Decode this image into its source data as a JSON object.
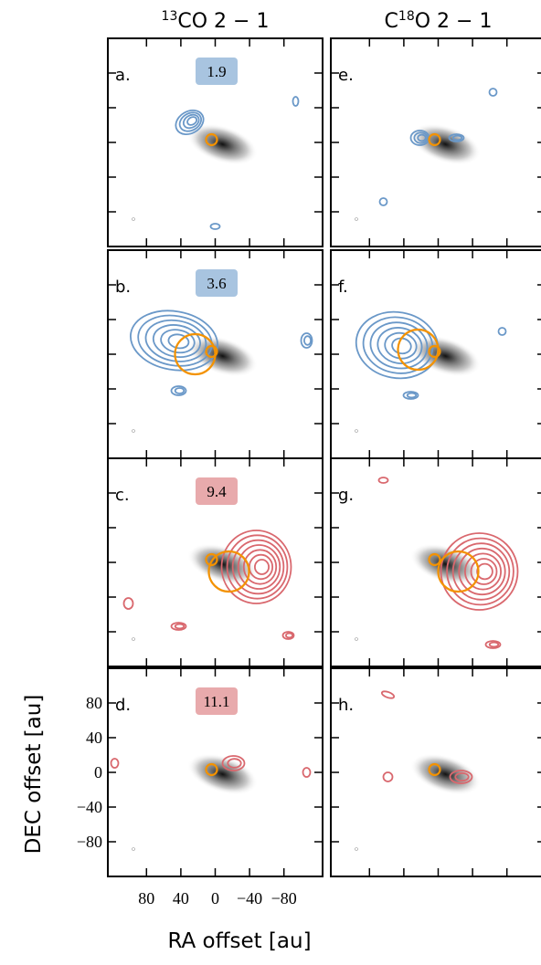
{
  "chart_data": {
    "type": "channel-map",
    "columns": [
      {
        "sup": "13",
        "post": "CO 2 − 1"
      },
      {
        "pre": "C",
        "sup": "18",
        "post": "O 2 − 1"
      }
    ],
    "panels": [
      {
        "letter": "a.",
        "column": 0,
        "row": 0,
        "velocity": 1.9,
        "color": "#6a98c8",
        "box_color": "#a8c4e0"
      },
      {
        "letter": "b.",
        "column": 0,
        "row": 1,
        "velocity": 3.6,
        "color": "#6a98c8",
        "box_color": "#a8c4e0"
      },
      {
        "letter": "c.",
        "column": 0,
        "row": 2,
        "velocity": 9.4,
        "color": "#d9686e",
        "box_color": "#e8aaac"
      },
      {
        "letter": "d.",
        "column": 0,
        "row": 3,
        "velocity": 11.1,
        "color": "#d9686e",
        "box_color": "#e8aaac"
      },
      {
        "letter": "e.",
        "column": 1,
        "row": 0,
        "color": "#6a98c8"
      },
      {
        "letter": "f.",
        "column": 1,
        "row": 1,
        "color": "#6a98c8"
      },
      {
        "letter": "g.",
        "column": 1,
        "row": 2,
        "color": "#d9686e"
      },
      {
        "letter": "h.",
        "column": 1,
        "row": 3,
        "color": "#d9686e"
      }
    ],
    "xlabel": "RA offset [au]",
    "ylabel": "DEC offset [au]",
    "xlim": [
      125,
      -125
    ],
    "ylim": [
      -120,
      120
    ],
    "xticks": [
      80,
      40,
      0,
      {
        "value": -40,
        "label": "−40"
      },
      {
        "value": -80,
        "label": "−80"
      }
    ],
    "yticks": [
      {
        "value": -80,
        "label": "−80"
      },
      {
        "value": -40,
        "label": "−40"
      },
      0,
      40,
      80
    ]
  }
}
